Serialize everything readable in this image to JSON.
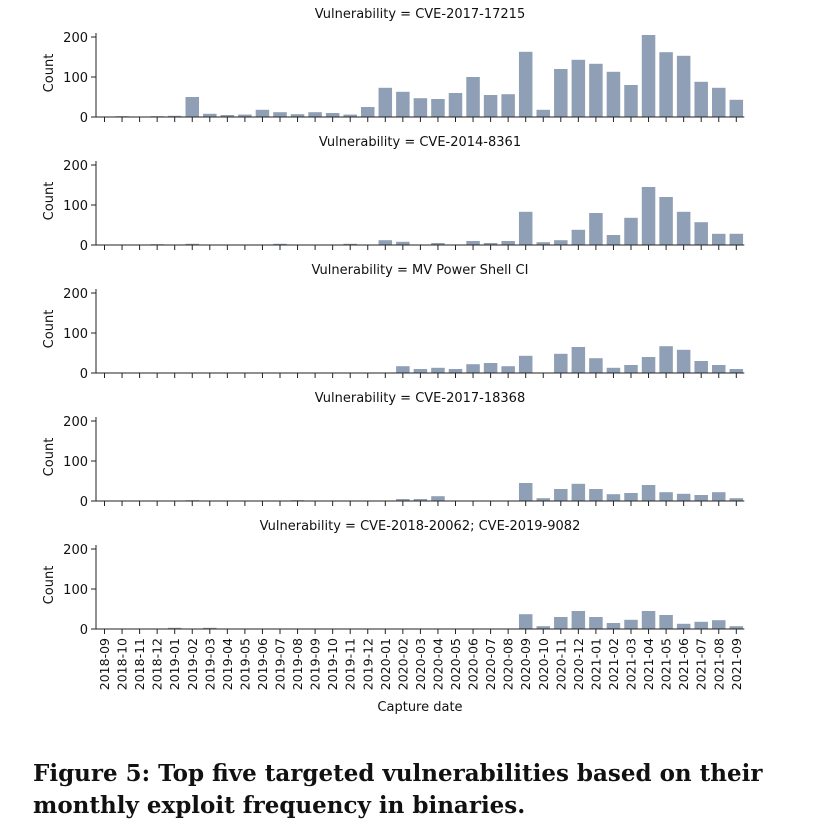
{
  "chart_data": {
    "type": "bar",
    "xlabel": "Capture date",
    "ylabel": "Count",
    "ylim": [
      0,
      210
    ],
    "yticks": [
      0,
      100,
      200
    ],
    "bar_color": "#8fa0b6",
    "categories": [
      "2018-09",
      "2018-10",
      "2018-11",
      "2018-12",
      "2019-01",
      "2019-02",
      "2019-03",
      "2019-04",
      "2019-05",
      "2019-06",
      "2019-07",
      "2019-08",
      "2019-09",
      "2019-10",
      "2019-11",
      "2019-12",
      "2020-01",
      "2020-02",
      "2020-03",
      "2020-04",
      "2020-05",
      "2020-06",
      "2020-07",
      "2020-08",
      "2020-09",
      "2020-10",
      "2020-11",
      "2020-12",
      "2021-01",
      "2021-02",
      "2021-03",
      "2021-04",
      "2021-05",
      "2021-06",
      "2021-07",
      "2021-08",
      "2021-09"
    ],
    "panels": [
      {
        "title": "Vulnerability = CVE-2017-17215",
        "values": [
          0,
          2,
          0,
          2,
          3,
          50,
          8,
          5,
          6,
          18,
          12,
          7,
          12,
          10,
          6,
          25,
          73,
          63,
          47,
          45,
          60,
          100,
          55,
          57,
          163,
          18,
          120,
          143,
          133,
          113,
          80,
          205,
          162,
          153,
          88,
          73,
          43
        ]
      },
      {
        "title": "Vulnerability = CVE-2014-8361",
        "values": [
          0,
          0,
          0,
          2,
          0,
          3,
          0,
          0,
          0,
          0,
          3,
          0,
          0,
          0,
          3,
          0,
          12,
          8,
          0,
          5,
          0,
          10,
          5,
          10,
          83,
          7,
          12,
          38,
          80,
          25,
          68,
          145,
          120,
          83,
          57,
          28,
          28
        ]
      },
      {
        "title": "Vulnerability = MV Power Shell CI",
        "values": [
          0,
          0,
          0,
          0,
          0,
          0,
          0,
          0,
          0,
          0,
          0,
          0,
          0,
          0,
          0,
          0,
          0,
          17,
          10,
          13,
          10,
          22,
          25,
          17,
          43,
          0,
          48,
          65,
          37,
          13,
          20,
          40,
          67,
          58,
          30,
          20,
          10
        ]
      },
      {
        "title": "Vulnerability = CVE-2017-18368",
        "values": [
          0,
          0,
          0,
          0,
          0,
          2,
          0,
          0,
          0,
          0,
          0,
          2,
          0,
          0,
          0,
          0,
          0,
          5,
          5,
          12,
          0,
          0,
          0,
          0,
          45,
          7,
          30,
          43,
          30,
          17,
          20,
          40,
          22,
          18,
          15,
          22,
          7
        ]
      },
      {
        "title": "Vulnerability = CVE-2018-20062; CVE-2019-9082",
        "values": [
          0,
          0,
          0,
          0,
          3,
          0,
          3,
          0,
          0,
          0,
          0,
          0,
          0,
          0,
          0,
          0,
          0,
          0,
          0,
          0,
          0,
          0,
          0,
          0,
          37,
          7,
          30,
          45,
          30,
          15,
          23,
          45,
          35,
          13,
          18,
          22,
          7
        ]
      }
    ]
  },
  "caption": "Figure 5: Top five targeted vulnerabilities based on their monthly exploit frequency in binaries."
}
